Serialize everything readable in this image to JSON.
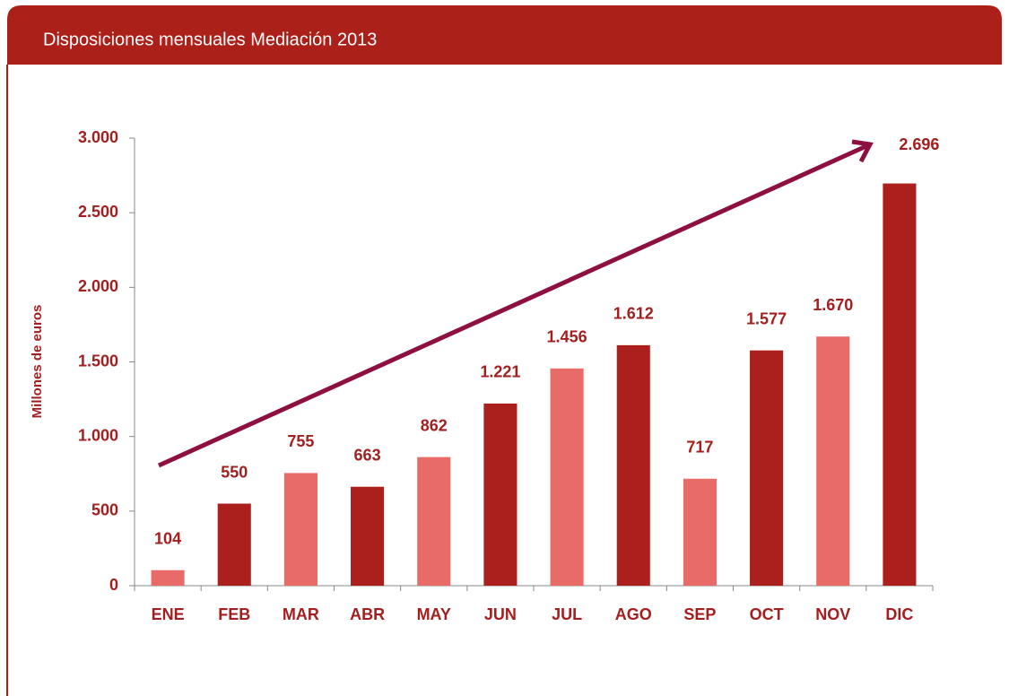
{
  "chart_data": {
    "type": "bar",
    "title": "Disposiciones mensuales Mediación 2013",
    "y_label": "Millones de euros",
    "categories": [
      "ENE",
      "FEB",
      "MAR",
      "ABR",
      "MAY",
      "JUN",
      "JUL",
      "AGO",
      "SEP",
      "OCT",
      "NOV",
      "DIC"
    ],
    "values": [
      104,
      550,
      755,
      663,
      862,
      1221,
      1456,
      1612,
      717,
      1577,
      1670,
      2696
    ],
    "value_labels": [
      "104",
      "550",
      "755",
      "663",
      "862",
      "1.221",
      "1.456",
      "1.612",
      "717",
      "1.577",
      "1.670",
      "2.696"
    ],
    "colors": [
      "#e86b67",
      "#ab1f1c",
      "#e86b67",
      "#ab1f1c",
      "#e86b67",
      "#ab1f1c",
      "#e86b67",
      "#ab1f1c",
      "#e86b67",
      "#ab1f1c",
      "#e86b67",
      "#ab1f1c"
    ],
    "ylim": [
      0,
      3000
    ],
    "yticks": [
      0,
      500,
      {
        "value": 1000,
        "label": "1.000"
      },
      {
        "value": 1500,
        "label": "1.500"
      },
      {
        "value": 2000,
        "label": "2.000"
      },
      {
        "value": 2500,
        "label": "2.500"
      },
      {
        "value": 3000,
        "label": "3.000"
      }
    ],
    "grid": false
  }
}
